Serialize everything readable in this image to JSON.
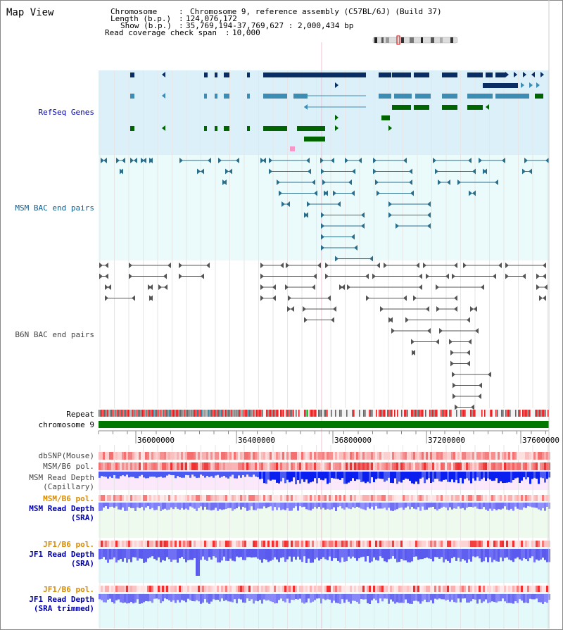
{
  "view_title": "Map View",
  "info": {
    "chromosome_label": "Chromosome",
    "chromosome_value": "Chromosome 9, reference assembly (C57BL/6J) (Build 37)",
    "length_label": "Length (b.p.)",
    "length_value": "124,076,172",
    "show_label": "Show (b.p.)",
    "show_value": "35,769,194-37,769,627 : 2,000,434 bp",
    "coverage_label": "Read coverage check span",
    "coverage_value": "10,000"
  },
  "tracks": {
    "refseq": "RefSeq Genes",
    "msm_bac": "MSM BAC end pairs",
    "b6n_bac": "B6N BAC end pairs",
    "repeat": "Repeat",
    "chromosome": "chromosome 9",
    "dbsnp": "dbSNP(Mouse)",
    "msm_b6_pol": "MSM/B6 pol.",
    "msm_depth_cap_1": "MSM Read Depth",
    "msm_depth_cap_2": "(Capillary)",
    "msm_b6_pol_sra": "MSM/B6 pol.",
    "msm_depth_sra_1": "MSM Read Depth",
    "msm_depth_sra_2": "(SRA)",
    "jf1_b6_pol": "JF1/B6 pol.",
    "jf1_depth_sra_1": "JF1 Read Depth",
    "jf1_depth_sra_2": "(SRA)",
    "jf1_b6_pol_2": "JF1/B6 pol.",
    "jf1_depth_trim_1": "JF1 Read Depth",
    "jf1_depth_trim_2": "(SRA trimmed)"
  },
  "axis": {
    "ticks": [
      "36000000",
      "36400000",
      "36800000",
      "37200000",
      "37600000"
    ]
  },
  "colors": {
    "refseq_bg": "#dcf0fa",
    "msm_bg": "#ebfafa",
    "gene_dark": "#0a2d64",
    "gene_mid": "#3c8cb4",
    "gene_green": "#006400",
    "bac_msm": "#2a6e8c",
    "bac_b6n": "#555555",
    "chromosome_bar": "#007800",
    "title_blue": "#0000aa",
    "title_orange": "#d88a00"
  }
}
